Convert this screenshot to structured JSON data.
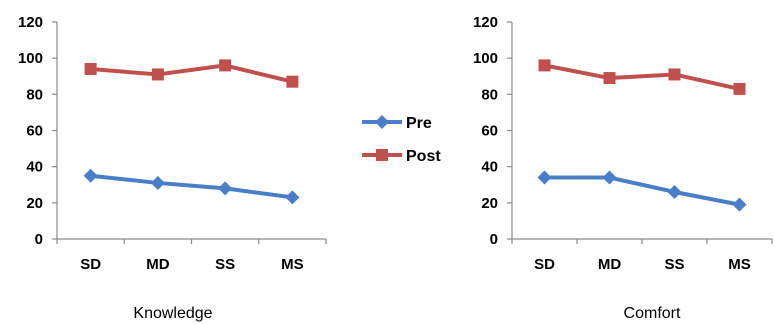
{
  "chart_data": [
    {
      "type": "line",
      "xlabel": "Knowledge",
      "categories": [
        "SD",
        "MD",
        "SS",
        "MS"
      ],
      "ylim": [
        0,
        120
      ],
      "yticks": [
        0,
        20,
        40,
        60,
        80,
        100,
        120
      ],
      "grid": false,
      "series": [
        {
          "name": "Pre",
          "values": [
            35,
            31,
            28,
            23
          ],
          "color": "#4a7ec9",
          "marker": "diamond"
        },
        {
          "name": "Post",
          "values": [
            94,
            91,
            96,
            87
          ],
          "color": "#c0504d",
          "marker": "square"
        }
      ]
    },
    {
      "type": "line",
      "xlabel": "Comfort",
      "categories": [
        "SD",
        "MD",
        "SS",
        "MS"
      ],
      "ylim": [
        0,
        120
      ],
      "yticks": [
        0,
        20,
        40,
        60,
        80,
        100,
        120
      ],
      "grid": false,
      "series": [
        {
          "name": "Pre",
          "values": [
            34,
            34,
            26,
            19
          ],
          "color": "#4a7ec9",
          "marker": "diamond"
        },
        {
          "name": "Post",
          "values": [
            96,
            89,
            91,
            83
          ],
          "color": "#c0504d",
          "marker": "square"
        }
      ]
    }
  ],
  "legend": {
    "placement": "center",
    "items": [
      {
        "label": "Pre",
        "color": "#4a7ec9",
        "marker": "diamond"
      },
      {
        "label": "Post",
        "color": "#c0504d",
        "marker": "square"
      }
    ]
  }
}
